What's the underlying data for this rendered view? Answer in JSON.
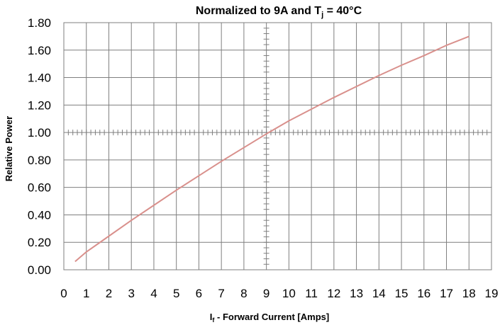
{
  "chart_data": {
    "type": "line",
    "title": "Normalized to 9A and T",
    "title_subscript": "j",
    "title_tail": " = 40°C",
    "xlabel": "I",
    "xlabel_subscript": "f",
    "xlabel_tail": " - Forward Current [Amps]",
    "ylabel": "Relative Power",
    "xlim": [
      0,
      19
    ],
    "ylim": [
      0,
      1.8
    ],
    "x_ticks": [
      "0",
      "1",
      "2",
      "3",
      "4",
      "5",
      "6",
      "7",
      "8",
      "9",
      "10",
      "11",
      "12",
      "13",
      "14",
      "15",
      "16",
      "17",
      "18",
      "19"
    ],
    "y_ticks": [
      "0.00",
      "0.20",
      "0.40",
      "0.60",
      "0.80",
      "1.00",
      "1.20",
      "1.40",
      "1.60",
      "1.80"
    ],
    "grid": true,
    "line_color": "#d9908c",
    "series": [
      {
        "x": [
          0.5,
          1,
          2,
          3,
          4,
          5,
          6,
          7,
          8,
          9,
          10,
          11,
          12,
          13,
          14,
          15,
          16,
          17,
          18
        ],
        "y": [
          0.06,
          0.13,
          0.245,
          0.36,
          0.47,
          0.58,
          0.685,
          0.79,
          0.89,
          0.99,
          1.085,
          1.17,
          1.255,
          1.335,
          1.415,
          1.49,
          1.56,
          1.635,
          1.7
        ]
      }
    ]
  }
}
